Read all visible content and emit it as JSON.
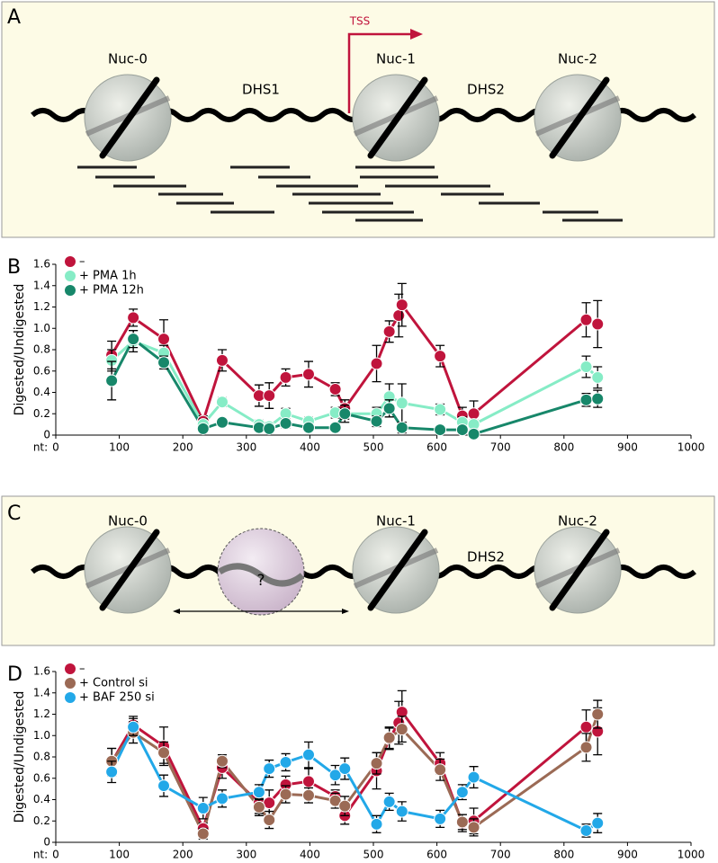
{
  "diagram_a": {
    "panel_label": "A",
    "nuc0": "Nuc-0",
    "dhs1": "DHS1",
    "nuc1": "Nuc-1",
    "dhs2": "DHS2",
    "nuc2": "Nuc-2",
    "tss": "TSS"
  },
  "diagram_c": {
    "panel_label": "C",
    "nuc0": "Nuc-0",
    "unknown": "?",
    "nuc1": "Nuc-1",
    "dhs2": "DHS2",
    "nuc2": "Nuc-2"
  },
  "chart_data": [
    {
      "type": "line",
      "panel_label": "B",
      "y_label": "Digested/Undigested",
      "x_label": "nt:",
      "xlim": [
        0,
        1000
      ],
      "xticks": [
        0,
        100,
        200,
        300,
        400,
        500,
        600,
        700,
        800,
        900,
        1000
      ],
      "ylim": [
        0,
        1.6
      ],
      "yticks": [
        0,
        0.2,
        0.4,
        0.6,
        0.8,
        {
          "value": 1,
          "label": "1.0"
        },
        1.2,
        1.4,
        1.6
      ],
      "legend": "top-left",
      "series": [
        {
          "name": "–",
          "color": "#c0143c",
          "x": [
            88,
            122,
            170,
            232,
            262,
            320,
            336,
            362,
            398,
            440,
            455,
            505,
            525,
            540,
            545,
            605,
            640,
            658,
            835,
            853
          ],
          "values": [
            0.75,
            1.1,
            0.9,
            0.13,
            0.7,
            0.37,
            0.37,
            0.54,
            0.57,
            0.43,
            0.25,
            0.67,
            0.97,
            1.12,
            1.22,
            0.74,
            0.18,
            0.2,
            1.08,
            1.04
          ],
          "errors": [
            0.13,
            0.08,
            0.18,
            0.05,
            0.1,
            0.1,
            0.12,
            0.08,
            0.12,
            0.06,
            0.08,
            0.17,
            0.1,
            0.2,
            0.2,
            0.1,
            0.08,
            0.12,
            0.16,
            0.22
          ]
        },
        {
          "name": "+ PMA 1h",
          "color": "#86ecc6",
          "x": [
            88,
            122,
            170,
            232,
            262,
            320,
            336,
            362,
            398,
            440,
            455,
            505,
            525,
            545,
            605,
            640,
            658,
            835,
            853
          ],
          "values": [
            0.7,
            0.88,
            0.77,
            0.1,
            0.31,
            0.1,
            0.08,
            0.2,
            0.13,
            0.21,
            0.2,
            0.2,
            0.36,
            0.3,
            0.24,
            0.12,
            0.1,
            0.64,
            0.54
          ],
          "errors": [
            0.1,
            0.1,
            0.07,
            0.05,
            0.04,
            0.04,
            0.04,
            0.05,
            0.04,
            0.05,
            0.08,
            0.06,
            0.12,
            0.18,
            0.05,
            0.05,
            0.04,
            0.1,
            0.1
          ]
        },
        {
          "name": "+ PMA 12h",
          "color": "#17876a",
          "x": [
            88,
            122,
            170,
            232,
            262,
            320,
            336,
            362,
            398,
            440,
            455,
            505,
            525,
            545,
            605,
            640,
            658,
            835,
            853
          ],
          "values": [
            0.51,
            0.9,
            0.68,
            0.06,
            0.12,
            0.07,
            0.06,
            0.11,
            0.07,
            0.07,
            0.2,
            0.13,
            0.25,
            0.07,
            0.05,
            0.05,
            0.01,
            0.33,
            0.34
          ],
          "errors": [
            0.18,
            0.08,
            0.06,
            0.03,
            0.03,
            0.03,
            0.03,
            0.04,
            0.03,
            0.03,
            0.05,
            0.05,
            0.08,
            0.05,
            0.03,
            0.03,
            0.02,
            0.06,
            0.08
          ]
        }
      ]
    },
    {
      "type": "line",
      "panel_label": "D",
      "y_label": "Digested/Undigested",
      "x_label": "nt:",
      "xlim": [
        0,
        1000
      ],
      "xticks": [
        0,
        100,
        200,
        300,
        400,
        500,
        600,
        700,
        800,
        900,
        1000
      ],
      "ylim": [
        0,
        1.6
      ],
      "yticks": [
        0,
        0.2,
        0.4,
        0.6,
        0.8,
        {
          "value": 1,
          "label": "1.0"
        },
        1.2,
        1.4,
        1.6
      ],
      "legend": "top-left",
      "series": [
        {
          "name": "–",
          "color": "#c0143c",
          "x": [
            88,
            122,
            170,
            232,
            262,
            320,
            336,
            362,
            398,
            440,
            455,
            505,
            525,
            540,
            545,
            605,
            640,
            658,
            835,
            853
          ],
          "values": [
            0.75,
            1.1,
            0.9,
            0.13,
            0.7,
            0.37,
            0.37,
            0.54,
            0.57,
            0.43,
            0.25,
            0.67,
            0.97,
            1.12,
            1.22,
            0.74,
            0.18,
            0.2,
            1.08,
            1.04
          ],
          "errors": [
            0.13,
            0.08,
            0.18,
            0.05,
            0.1,
            0.1,
            0.12,
            0.08,
            0.12,
            0.06,
            0.08,
            0.17,
            0.1,
            0.2,
            0.2,
            0.1,
            0.08,
            0.12,
            0.16,
            0.22
          ]
        },
        {
          "name": "+ Control si",
          "color": "#9b6a55",
          "x": [
            88,
            122,
            170,
            232,
            262,
            320,
            336,
            362,
            398,
            440,
            455,
            505,
            525,
            545,
            605,
            640,
            658,
            835,
            853
          ],
          "values": [
            0.76,
            1.03,
            0.84,
            0.08,
            0.76,
            0.33,
            0.21,
            0.45,
            0.44,
            0.39,
            0.34,
            0.74,
            0.98,
            1.06,
            0.68,
            0.19,
            0.14,
            0.89,
            1.2
          ],
          "errors": [
            0.12,
            0.1,
            0.1,
            0.05,
            0.06,
            0.08,
            0.08,
            0.08,
            0.07,
            0.07,
            0.09,
            0.1,
            0.1,
            0.12,
            0.1,
            0.07,
            0.08,
            0.13,
            0.13
          ]
        },
        {
          "name": "+ BAF 250 si",
          "color": "#22a8e8",
          "x": [
            88,
            122,
            170,
            232,
            262,
            320,
            336,
            362,
            398,
            440,
            455,
            505,
            525,
            545,
            605,
            640,
            658,
            835,
            853
          ],
          "values": [
            0.66,
            1.08,
            0.53,
            0.32,
            0.41,
            0.47,
            0.69,
            0.75,
            0.82,
            0.63,
            0.69,
            0.17,
            0.38,
            0.29,
            0.22,
            0.47,
            0.61,
            0.11,
            0.18
          ],
          "errors": [
            0.1,
            0.08,
            0.1,
            0.1,
            0.08,
            0.07,
            0.08,
            0.08,
            0.12,
            0.09,
            0.1,
            0.08,
            0.08,
            0.09,
            0.08,
            0.07,
            0.1,
            0.06,
            0.09
          ]
        }
      ]
    }
  ]
}
